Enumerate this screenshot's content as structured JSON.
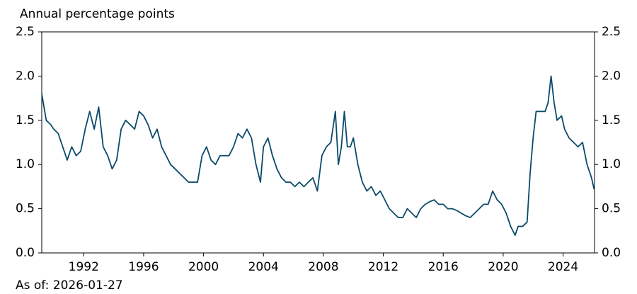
{
  "chart_data": {
    "type": "line",
    "y_label": "Annual percentage points",
    "annotation": "As of: 2026-01-27",
    "color": "#0b4a6b",
    "x": [
      1989.2,
      1989.5,
      1989.8,
      1990.0,
      1990.3,
      1990.6,
      1990.9,
      1991.2,
      1991.5,
      1991.8,
      1992.1,
      1992.4,
      1992.7,
      1993.0,
      1993.3,
      1993.6,
      1993.9,
      1994.2,
      1994.5,
      1994.8,
      1995.1,
      1995.4,
      1995.7,
      1996.0,
      1996.3,
      1996.6,
      1996.9,
      1997.2,
      1997.5,
      1997.8,
      1998.1,
      1998.4,
      1998.7,
      1999.0,
      1999.3,
      1999.6,
      1999.9,
      2000.2,
      2000.5,
      2000.8,
      2001.1,
      2001.4,
      2001.7,
      2002.0,
      2002.3,
      2002.6,
      2002.9,
      2003.2,
      2003.5,
      2003.8,
      2004.0,
      2004.3,
      2004.6,
      2004.9,
      2005.2,
      2005.5,
      2005.8,
      2006.1,
      2006.4,
      2006.7,
      2007.0,
      2007.3,
      2007.6,
      2007.9,
      2008.2,
      2008.5,
      2008.8,
      2009.0,
      2009.2,
      2009.4,
      2009.6,
      2009.8,
      2010.0,
      2010.3,
      2010.6,
      2010.9,
      2011.2,
      2011.5,
      2011.8,
      2012.1,
      2012.4,
      2012.7,
      2013.0,
      2013.3,
      2013.6,
      2013.9,
      2014.2,
      2014.5,
      2014.8,
      2015.1,
      2015.4,
      2015.7,
      2016.0,
      2016.3,
      2016.6,
      2016.9,
      2017.2,
      2017.5,
      2017.8,
      2018.1,
      2018.4,
      2018.7,
      2019.0,
      2019.3,
      2019.6,
      2019.9,
      2020.2,
      2020.5,
      2020.8,
      2021.0,
      2021.3,
      2021.6,
      2021.8,
      2022.0,
      2022.2,
      2022.5,
      2022.8,
      2023.0,
      2023.2,
      2023.4,
      2023.6,
      2023.9,
      2024.1,
      2024.4,
      2024.7,
      2025.0,
      2025.3,
      2025.6,
      2025.9,
      2026.07
    ],
    "values": [
      1.8,
      1.5,
      1.45,
      1.4,
      1.35,
      1.2,
      1.05,
      1.2,
      1.1,
      1.15,
      1.4,
      1.6,
      1.4,
      1.65,
      1.2,
      1.1,
      0.95,
      1.05,
      1.4,
      1.5,
      1.45,
      1.4,
      1.6,
      1.55,
      1.45,
      1.3,
      1.4,
      1.2,
      1.1,
      1.0,
      0.95,
      0.9,
      0.85,
      0.8,
      0.8,
      0.8,
      1.1,
      1.2,
      1.05,
      1.0,
      1.1,
      1.1,
      1.1,
      1.2,
      1.35,
      1.3,
      1.4,
      1.3,
      1.0,
      0.8,
      1.2,
      1.3,
      1.1,
      0.95,
      0.85,
      0.8,
      0.8,
      0.75,
      0.8,
      0.75,
      0.8,
      0.85,
      0.7,
      1.1,
      1.2,
      1.25,
      1.6,
      1.0,
      1.2,
      1.6,
      1.2,
      1.2,
      1.3,
      1.0,
      0.8,
      0.7,
      0.75,
      0.65,
      0.7,
      0.6,
      0.5,
      0.45,
      0.4,
      0.4,
      0.5,
      0.45,
      0.4,
      0.5,
      0.55,
      0.58,
      0.6,
      0.55,
      0.55,
      0.5,
      0.5,
      0.48,
      0.45,
      0.42,
      0.4,
      0.45,
      0.5,
      0.55,
      0.55,
      0.7,
      0.6,
      0.55,
      0.45,
      0.3,
      0.2,
      0.3,
      0.3,
      0.35,
      0.9,
      1.3,
      1.6,
      1.6,
      1.6,
      1.7,
      2.0,
      1.7,
      1.5,
      1.55,
      1.4,
      1.3,
      1.25,
      1.2,
      1.25,
      1.0,
      0.85,
      0.72
    ],
    "xlim": [
      1989.2,
      2026.1
    ],
    "xticks": [
      1992,
      1996,
      2000,
      2004,
      2008,
      2012,
      2016,
      2020,
      2024
    ],
    "ylim": [
      0,
      2.5
    ],
    "yticks": [
      {
        "value": 0,
        "label": "0.0"
      },
      0.5,
      {
        "value": 1,
        "label": "1.0"
      },
      1.5,
      {
        "value": 2,
        "label": "2.0"
      },
      2.5
    ],
    "y2lim": [
      0,
      2.5
    ],
    "y2ticks": [
      {
        "value": 0,
        "label": "0.0"
      },
      0.5,
      {
        "value": 1,
        "label": "1.0"
      },
      1.5,
      {
        "value": 2,
        "label": "2.0"
      },
      2.5
    ],
    "grid": false
  }
}
